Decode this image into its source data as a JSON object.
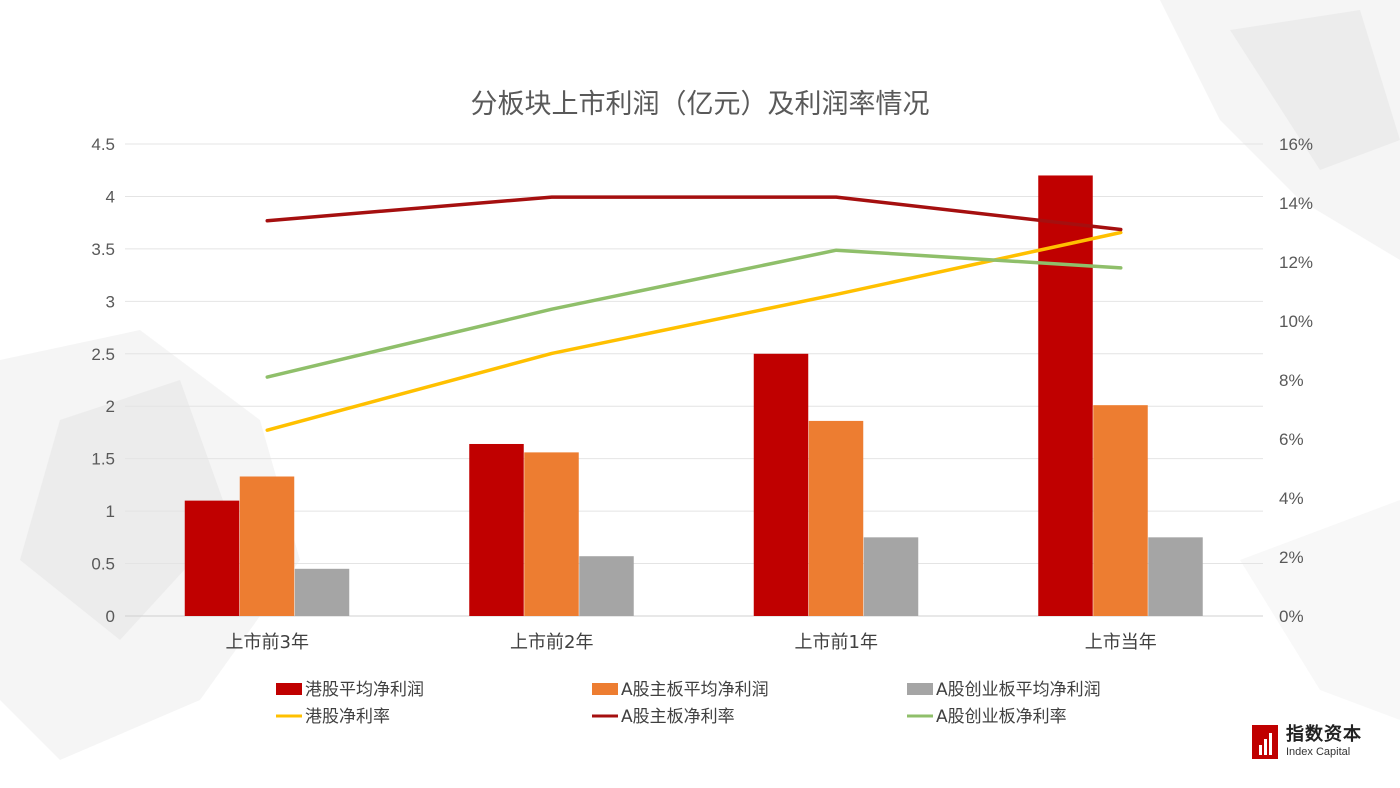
{
  "chart_data": {
    "type": "bar",
    "title": "分板块上市利润（亿元）及利润率情况",
    "categories": [
      "上市前3年",
      "上市前2年",
      "上市前1年",
      "上市当年"
    ],
    "ylim_left": [
      0,
      4.5
    ],
    "ylim_right": [
      0,
      0.16
    ],
    "left_ticks": [
      "0",
      "0.5",
      "1",
      "1.5",
      "2",
      "2.5",
      "3",
      "3.5",
      "4",
      "4.5"
    ],
    "right_ticks": [
      "0%",
      "2%",
      "4%",
      "6%",
      "8%",
      "10%",
      "12%",
      "14%",
      "16%"
    ],
    "grid": true,
    "legend_position": "bottom",
    "series": [
      {
        "name": "港股平均净利润",
        "kind": "bar",
        "axis": "left",
        "color": "#C00000",
        "values": [
          1.1,
          1.64,
          2.5,
          4.2
        ]
      },
      {
        "name": "A股主板平均净利润",
        "kind": "bar",
        "axis": "left",
        "color": "#ED7D31",
        "values": [
          1.33,
          1.56,
          1.86,
          2.01
        ]
      },
      {
        "name": "A股创业板平均净利润",
        "kind": "bar",
        "axis": "left",
        "color": "#A5A5A5",
        "values": [
          0.45,
          0.57,
          0.75,
          0.75
        ]
      },
      {
        "name": "港股净利率",
        "kind": "line",
        "axis": "right",
        "color": "#FFC000",
        "values": [
          0.063,
          0.089,
          0.109,
          0.13
        ]
      },
      {
        "name": "A股主板净利率",
        "kind": "line",
        "axis": "right",
        "color": "#A50F0F",
        "values": [
          0.134,
          0.142,
          0.142,
          0.131
        ]
      },
      {
        "name": "A股创业板净利率",
        "kind": "line",
        "axis": "right",
        "color": "#8FBF6A",
        "values": [
          0.081,
          0.104,
          0.124,
          0.118
        ]
      }
    ]
  },
  "logo": {
    "cn": "指数资本",
    "en": "Index Capital"
  }
}
